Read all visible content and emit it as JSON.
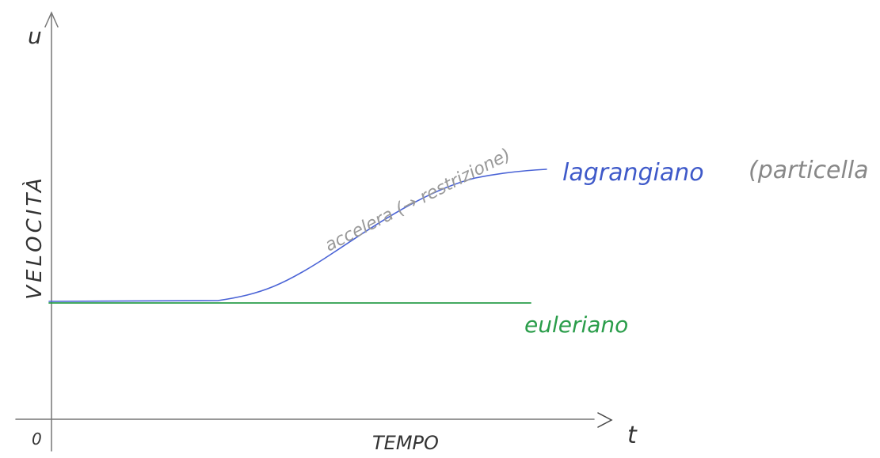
{
  "y_axis": {
    "symbol": "u",
    "label": "VELOCITÀ"
  },
  "x_axis": {
    "symbol": "t",
    "label": "TEMPO",
    "origin": "0"
  },
  "curves": [
    {
      "label": "lagrangiano",
      "note": "accelera (→ restrizione)",
      "aside": "(particella"
    },
    {
      "label": "euleriano"
    }
  ]
}
